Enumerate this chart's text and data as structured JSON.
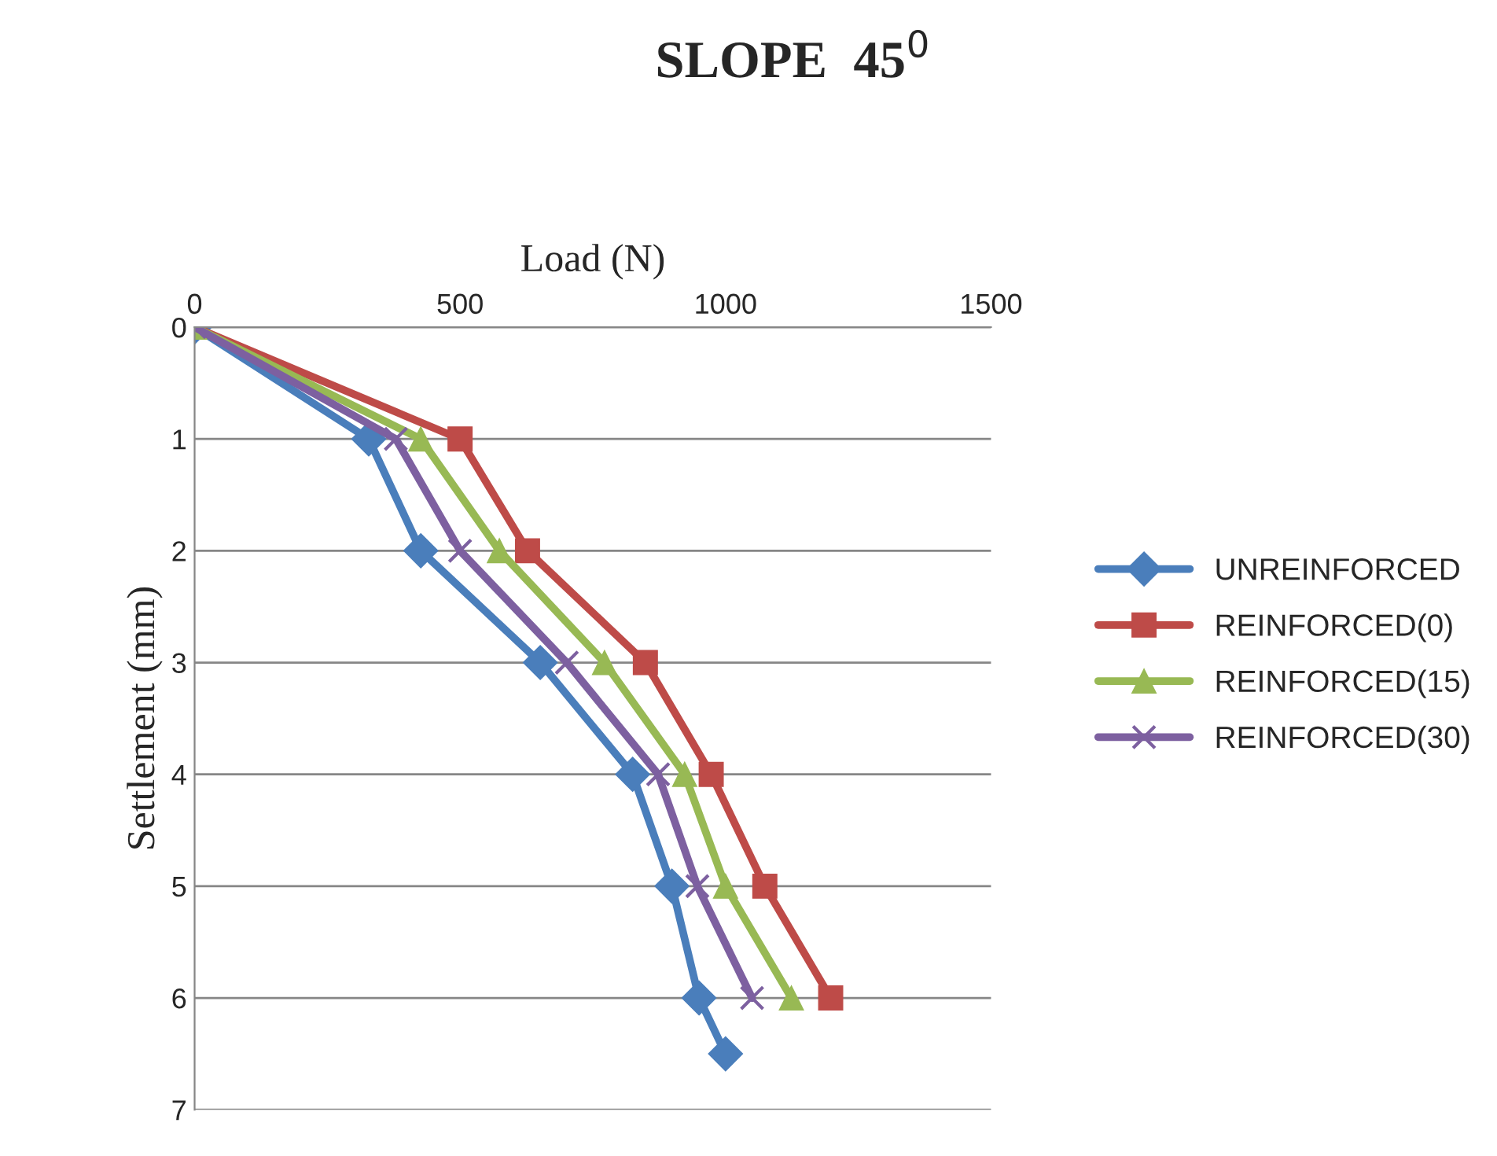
{
  "chart_data": {
    "type": "line",
    "title": "SLOPE  45$^{0}$",
    "xlabel": "Load (N)",
    "ylabel": "Settlement (mm)",
    "xlim": [
      0,
      1500
    ],
    "xticks": [
      0,
      500,
      1000,
      1500
    ],
    "ylim": [
      7,
      0
    ],
    "yticks": [
      0,
      1,
      2,
      3,
      4,
      5,
      6,
      7
    ],
    "grid": "y",
    "legend": "right",
    "line_style": "solid",
    "series": [
      {
        "name": "UNREINFORCED",
        "color": "#4a7ebb",
        "marker": "diamond",
        "x": [
          0,
          328,
          426,
          651,
          825,
          899,
          950,
          1000
        ],
        "values": [
          0,
          1,
          2,
          3,
          4,
          5,
          6,
          6.5
        ]
      },
      {
        "name": "REINFORCED(0)",
        "color": "#be4b48",
        "marker": "square",
        "x": [
          0,
          500,
          627,
          849,
          973,
          1074,
          1198
        ],
        "values": [
          0,
          1,
          2,
          3,
          4,
          5,
          6
        ]
      },
      {
        "name": "REINFORCED(15)",
        "color": "#98b954",
        "marker": "triangle",
        "x": [
          0,
          426,
          574,
          772,
          923,
          1000,
          1124
        ],
        "values": [
          0,
          1,
          2,
          3,
          4,
          5,
          6
        ]
      },
      {
        "name": "REINFORCED(30)",
        "color": "#7d60a0",
        "marker": "cross",
        "x": [
          0,
          379,
          500,
          701,
          873,
          947,
          1050
        ],
        "values": [
          0,
          1,
          2,
          3,
          4,
          5,
          6
        ]
      }
    ]
  }
}
